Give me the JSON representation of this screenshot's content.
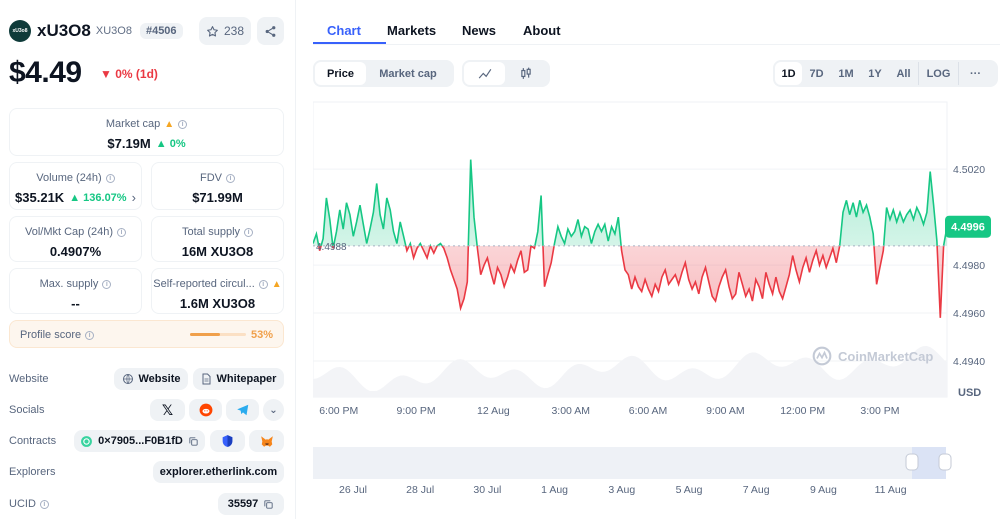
{
  "coin": {
    "name": "xU3O8",
    "symbol": "XU3O8",
    "rank": "#4506",
    "logo_text": "xU3o8",
    "watchlist_count": "238"
  },
  "price": {
    "value": "$4.49",
    "change": "0% (1d)"
  },
  "stats": {
    "market_cap": {
      "label": "Market cap",
      "value": "$7.19M",
      "change": "0%"
    },
    "volume": {
      "label": "Volume (24h)",
      "value": "$35.21K",
      "change": "136.07%"
    },
    "fdv": {
      "label": "FDV",
      "value": "$71.99M"
    },
    "vol_mkt": {
      "label": "Vol/Mkt Cap (24h)",
      "value": "0.4907%"
    },
    "total_supply": {
      "label": "Total supply",
      "value": "16M XU3O8"
    },
    "max_supply": {
      "label": "Max. supply",
      "value": "--"
    },
    "self_reported": {
      "label": "Self-reported circul...",
      "value": "1.6M XU3O8"
    }
  },
  "profile": {
    "label": "Profile score",
    "value": "53%",
    "score": 0.53
  },
  "links": {
    "website_label": "Website",
    "website": "Website",
    "whitepaper": "Whitepaper",
    "socials_label": "Socials",
    "contracts_label": "Contracts",
    "contract": "0×7905...F0B1fD",
    "explorers_label": "Explorers",
    "explorer": "explorer.etherlink.com",
    "ucid_label": "UCID",
    "ucid": "35597"
  },
  "tabs": [
    "Chart",
    "Markets",
    "News",
    "About"
  ],
  "controls": {
    "price": "Price",
    "market_cap": "Market cap",
    "ranges": [
      "1D",
      "7D",
      "1M",
      "1Y",
      "All",
      "LOG"
    ],
    "more": "···"
  },
  "watermark": "CoinMarketCap",
  "colors": {
    "up": "#16c784",
    "down": "#ea3943",
    "accent": "#3861fb"
  },
  "chart_data": {
    "type": "line",
    "title": "",
    "xlabel": "",
    "ylabel": "USD",
    "baseline": 4.4988,
    "current": 4.4996,
    "ylim": [
      4.4925,
      4.5048
    ],
    "y_ticks": [
      "4.5020",
      "4.4980",
      "4.4960",
      "4.4940"
    ],
    "y_tick_values": [
      4.502,
      4.498,
      4.496,
      4.494
    ],
    "x_ticks": [
      "6:00 PM",
      "9:00 PM",
      "12 Aug",
      "3:00 AM",
      "6:00 AM",
      "9:00 AM",
      "12:00 PM",
      "3:00 PM"
    ],
    "x_tick_hours": [
      1,
      4,
      7,
      10,
      13,
      16,
      19,
      22
    ],
    "x_span_hours": 24.6,
    "baseline_label": "4.4988",
    "current_label": "4.4996",
    "unit": "USD",
    "series": [
      {
        "values": [
          4.4989,
          4.4993,
          4.4986,
          4.4991,
          4.5008,
          4.4999,
          4.4987,
          4.4994,
          4.5003,
          4.4995,
          4.5006,
          4.5001,
          4.4992,
          4.4998,
          4.5005,
          4.4997,
          4.4989,
          4.4995,
          4.5002,
          4.5014,
          4.5001,
          4.4995,
          4.5008,
          4.5003,
          4.4994,
          4.4989,
          4.4998,
          4.4992,
          4.4986,
          4.4989,
          4.4983,
          4.4987,
          4.4989,
          4.4986,
          4.4983,
          4.4988,
          4.4985,
          4.4988,
          4.4989,
          4.4987,
          4.4983,
          4.4978,
          4.4974,
          4.497,
          4.4962,
          4.4966,
          4.4973,
          4.5024,
          4.5,
          4.4987,
          4.4976,
          4.498,
          4.4983,
          4.4977,
          4.4972,
          4.4979,
          4.4976,
          4.4971,
          4.4975,
          4.498,
          4.4977,
          4.4982,
          4.4986,
          4.4977,
          4.4978,
          4.4988,
          4.4987,
          4.4994,
          4.5009,
          4.4971,
          4.4976,
          4.4981,
          4.4989,
          4.4996,
          4.4992,
          4.4989,
          4.4995,
          4.4992,
          4.4994,
          4.4999,
          4.4992,
          4.4996,
          4.4995,
          4.4989,
          4.4994,
          4.4997,
          4.4994,
          4.4997,
          4.499,
          4.4996,
          4.4993,
          4.5,
          4.4986,
          4.4978,
          4.4976,
          4.497,
          4.4975,
          4.4971,
          4.4969,
          4.4974,
          4.497,
          4.4967,
          4.4972,
          4.4969,
          4.4975,
          4.4978,
          4.4972,
          4.4974,
          4.4976,
          4.4972,
          4.4977,
          4.4981,
          4.4974,
          4.497,
          4.4973,
          4.4968,
          4.4975,
          4.4979,
          4.4973,
          4.4967,
          4.4965,
          4.4971,
          4.4975,
          4.4978,
          4.4971,
          4.4966,
          4.4968,
          4.4977,
          4.4972,
          4.4967,
          4.497,
          4.4965,
          4.4974,
          4.4971,
          4.4966,
          4.4977,
          4.4972,
          4.4968,
          4.4975,
          4.4969,
          4.4966,
          4.4971,
          4.4976,
          4.4984,
          4.4978,
          4.4973,
          4.4979,
          4.4983,
          4.4977,
          4.4982,
          4.4986,
          4.498,
          4.4984,
          4.4979,
          4.4983,
          4.4987,
          4.4981,
          4.4988,
          4.5002,
          4.5007,
          4.5001,
          4.5006,
          4.5,
          4.5007,
          4.5002,
          4.5005,
          4.5,
          4.4993,
          4.4972,
          4.4979,
          4.4986,
          4.5004,
          4.4999,
          4.5003,
          4.4998,
          4.5002,
          4.4998,
          4.5001,
          4.5003,
          4.4999,
          4.5004,
          4.5001,
          4.4997,
          4.5002,
          4.5019,
          4.5005,
          4.499,
          4.4958,
          4.4988,
          4.4996
        ]
      }
    ]
  }
}
